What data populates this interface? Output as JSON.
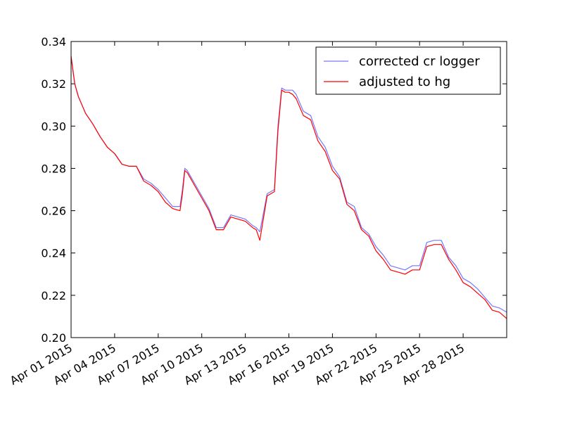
{
  "chart_data": {
    "type": "line",
    "title": "",
    "xlabel": "",
    "ylabel": "",
    "x_range": [
      "2015-04-01",
      "2015-05-01"
    ],
    "ylim": [
      0.2,
      0.34
    ],
    "y_ticks": [
      "0.20",
      "0.22",
      "0.24",
      "0.26",
      "0.28",
      "0.30",
      "0.32",
      "0.34"
    ],
    "x_ticks": [
      {
        "date": "2015-04-01",
        "label": "Apr 01 2015"
      },
      {
        "date": "2015-04-04",
        "label": "Apr 04 2015"
      },
      {
        "date": "2015-04-07",
        "label": "Apr 07 2015"
      },
      {
        "date": "2015-04-10",
        "label": "Apr 10 2015"
      },
      {
        "date": "2015-04-13",
        "label": "Apr 13 2015"
      },
      {
        "date": "2015-04-16",
        "label": "Apr 16 2015"
      },
      {
        "date": "2015-04-19",
        "label": "Apr 19 2015"
      },
      {
        "date": "2015-04-22",
        "label": "Apr 22 2015"
      },
      {
        "date": "2015-04-25",
        "label": "Apr 25 2015"
      },
      {
        "date": "2015-04-28",
        "label": "Apr 28 2015"
      }
    ],
    "grid": false,
    "legend_position": "top-right",
    "series": [
      {
        "name": "corrected cr logger",
        "color": "#7777ff",
        "x": [
          "2015-04-01 00:00",
          "2015-04-01 06:00",
          "2015-04-01 12:00",
          "2015-04-02 00:00",
          "2015-04-02 12:00",
          "2015-04-03 00:00",
          "2015-04-03 12:00",
          "2015-04-04 00:00",
          "2015-04-04 12:00",
          "2015-04-05 00:00",
          "2015-04-05 12:00",
          "2015-04-06 00:00",
          "2015-04-06 12:00",
          "2015-04-07 00:00",
          "2015-04-07 12:00",
          "2015-04-08 00:00",
          "2015-04-08 12:00",
          "2015-04-08 16:00",
          "2015-04-08 20:00",
          "2015-04-09 00:00",
          "2015-04-09 12:00",
          "2015-04-10 00:00",
          "2015-04-10 12:00",
          "2015-04-11 00:00",
          "2015-04-11 12:00",
          "2015-04-12 00:00",
          "2015-04-12 12:00",
          "2015-04-13 00:00",
          "2015-04-13 12:00",
          "2015-04-13 18:00",
          "2015-04-14 00:00",
          "2015-04-14 12:00",
          "2015-04-15 00:00",
          "2015-04-15 06:00",
          "2015-04-15 12:00",
          "2015-04-15 18:00",
          "2015-04-16 00:00",
          "2015-04-16 06:00",
          "2015-04-16 12:00",
          "2015-04-17 00:00",
          "2015-04-17 12:00",
          "2015-04-18 00:00",
          "2015-04-18 12:00",
          "2015-04-19 00:00",
          "2015-04-19 12:00",
          "2015-04-20 00:00",
          "2015-04-20 12:00",
          "2015-04-21 00:00",
          "2015-04-21 12:00",
          "2015-04-22 00:00",
          "2015-04-22 12:00",
          "2015-04-23 00:00",
          "2015-04-24 00:00",
          "2015-04-24 12:00",
          "2015-04-25 00:00",
          "2015-04-25 12:00",
          "2015-04-26 00:00",
          "2015-04-26 12:00",
          "2015-04-27 00:00",
          "2015-04-27 12:00",
          "2015-04-28 00:00",
          "2015-04-28 12:00",
          "2015-04-29 00:00",
          "2015-04-29 12:00",
          "2015-04-30 00:00",
          "2015-04-30 12:00",
          "2015-05-01 00:00"
        ],
        "y": [
          0.333,
          0.32,
          0.314,
          0.306,
          0.301,
          0.295,
          0.29,
          0.287,
          0.282,
          0.281,
          0.281,
          0.275,
          0.273,
          0.27,
          0.266,
          0.262,
          0.262,
          0.27,
          0.28,
          0.279,
          0.273,
          0.267,
          0.261,
          0.252,
          0.252,
          0.258,
          0.257,
          0.256,
          0.253,
          0.252,
          0.25,
          0.268,
          0.27,
          0.3,
          0.318,
          0.317,
          0.317,
          0.317,
          0.315,
          0.307,
          0.305,
          0.295,
          0.29,
          0.281,
          0.276,
          0.264,
          0.262,
          0.252,
          0.249,
          0.243,
          0.239,
          0.234,
          0.232,
          0.234,
          0.234,
          0.245,
          0.246,
          0.246,
          0.238,
          0.234,
          0.228,
          0.226,
          0.223,
          0.219,
          0.215,
          0.214,
          0.212
        ]
      },
      {
        "name": "adjusted to hg",
        "color": "#ff0000",
        "x": [
          "2015-04-01 00:00",
          "2015-04-01 06:00",
          "2015-04-01 12:00",
          "2015-04-02 00:00",
          "2015-04-02 12:00",
          "2015-04-03 00:00",
          "2015-04-03 12:00",
          "2015-04-04 00:00",
          "2015-04-04 12:00",
          "2015-04-05 00:00",
          "2015-04-05 12:00",
          "2015-04-06 00:00",
          "2015-04-06 12:00",
          "2015-04-07 00:00",
          "2015-04-07 12:00",
          "2015-04-08 00:00",
          "2015-04-08 12:00",
          "2015-04-08 16:00",
          "2015-04-08 20:00",
          "2015-04-09 00:00",
          "2015-04-09 12:00",
          "2015-04-10 00:00",
          "2015-04-10 12:00",
          "2015-04-11 00:00",
          "2015-04-11 12:00",
          "2015-04-12 00:00",
          "2015-04-12 12:00",
          "2015-04-13 00:00",
          "2015-04-13 12:00",
          "2015-04-13 18:00",
          "2015-04-14 00:00",
          "2015-04-14 12:00",
          "2015-04-15 00:00",
          "2015-04-15 06:00",
          "2015-04-15 12:00",
          "2015-04-15 18:00",
          "2015-04-16 00:00",
          "2015-04-16 06:00",
          "2015-04-16 12:00",
          "2015-04-17 00:00",
          "2015-04-17 12:00",
          "2015-04-18 00:00",
          "2015-04-18 12:00",
          "2015-04-19 00:00",
          "2015-04-19 12:00",
          "2015-04-20 00:00",
          "2015-04-20 12:00",
          "2015-04-21 00:00",
          "2015-04-21 12:00",
          "2015-04-22 00:00",
          "2015-04-22 12:00",
          "2015-04-23 00:00",
          "2015-04-24 00:00",
          "2015-04-24 12:00",
          "2015-04-25 00:00",
          "2015-04-25 12:00",
          "2015-04-26 00:00",
          "2015-04-26 12:00",
          "2015-04-27 00:00",
          "2015-04-27 12:00",
          "2015-04-28 00:00",
          "2015-04-28 12:00",
          "2015-04-29 00:00",
          "2015-04-29 12:00",
          "2015-04-30 00:00",
          "2015-04-30 12:00",
          "2015-05-01 00:00"
        ],
        "y": [
          0.333,
          0.32,
          0.314,
          0.306,
          0.301,
          0.295,
          0.29,
          0.287,
          0.282,
          0.281,
          0.281,
          0.274,
          0.272,
          0.269,
          0.264,
          0.261,
          0.26,
          0.268,
          0.279,
          0.278,
          0.272,
          0.266,
          0.26,
          0.251,
          0.251,
          0.257,
          0.256,
          0.255,
          0.252,
          0.251,
          0.246,
          0.267,
          0.269,
          0.298,
          0.317,
          0.316,
          0.316,
          0.315,
          0.313,
          0.305,
          0.303,
          0.293,
          0.288,
          0.279,
          0.275,
          0.263,
          0.26,
          0.251,
          0.248,
          0.241,
          0.237,
          0.232,
          0.23,
          0.232,
          0.232,
          0.243,
          0.244,
          0.244,
          0.237,
          0.232,
          0.226,
          0.224,
          0.221,
          0.218,
          0.213,
          0.212,
          0.209
        ]
      }
    ]
  }
}
